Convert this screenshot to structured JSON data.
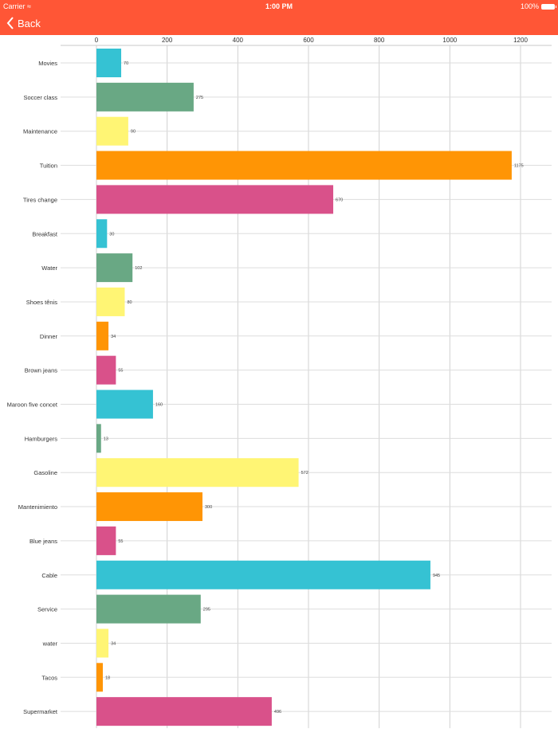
{
  "status_bar": {
    "carrier": "Carrier",
    "time": "1:00 PM",
    "battery": "100%"
  },
  "nav": {
    "back_label": "Back"
  },
  "colors": {
    "nav": "#FF5636",
    "palette": [
      "#35C2D3",
      "#69A884",
      "#FFF574",
      "#FF9505",
      "#D9518A"
    ]
  },
  "chart_data": {
    "type": "bar",
    "orientation": "horizontal",
    "categories": [
      "Movies",
      "Soccer class",
      "Maintenance",
      "Tuition",
      "Tires change",
      "Breakfast",
      "Water",
      "Shoes tênis",
      "Dinner",
      "Brown jeans",
      "Maroon five concet",
      "Hamburgers",
      "Gasoline",
      "Mantenimiento",
      "Blue jeans",
      "Cable",
      "Service",
      "water",
      "Tacos",
      "Supermarket"
    ],
    "values": [
      70,
      275,
      90,
      1175,
      670,
      30,
      102,
      80,
      34,
      55,
      160,
      13,
      572,
      300,
      55,
      945,
      295,
      34,
      18,
      496
    ],
    "data_labels": [
      "70",
      "275",
      "90",
      "1175",
      "670",
      "30",
      "102",
      "80",
      "34",
      "55",
      "160",
      "13",
      "572",
      "300",
      "55",
      "945",
      "295",
      "34",
      "18",
      "496"
    ],
    "xlim": [
      0,
      1200
    ],
    "x_ticks": [
      "0",
      "200",
      "400",
      "600",
      "800",
      "1000",
      "1200"
    ],
    "x_axis_position": "top",
    "grid": true,
    "legend": "none"
  }
}
